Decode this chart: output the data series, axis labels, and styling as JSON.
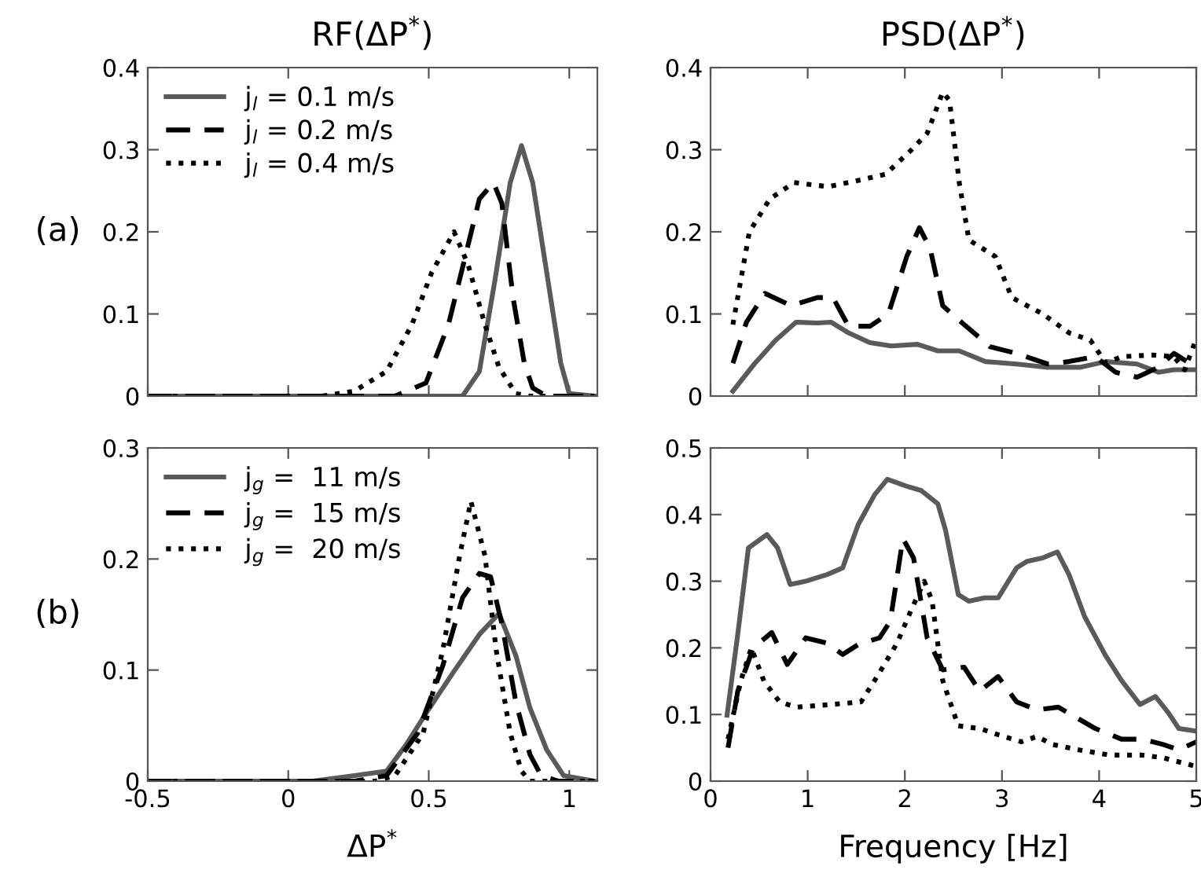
{
  "chart_data": [
    {
      "type": "line",
      "title": "RF(ΔP$^{*}$)",
      "annotations": [
        "(a)"
      ],
      "xlim": [
        -0.5,
        1.1
      ],
      "xticks": [
        -0.5,
        0,
        0.5,
        1
      ],
      "ylim": [
        0,
        0.4
      ],
      "yticks": [
        0,
        0.1,
        0.2,
        0.3,
        0.4
      ],
      "tick_labels": "y",
      "legend": "top left",
      "grid": false,
      "marker": "none",
      "series": [
        {
          "name": "j$_{l}$ = 0.1 m/s",
          "color": "#5a5a5a",
          "line_style": "solid",
          "x": [
            -0.5,
            0.62,
            0.68,
            0.735,
            0.79,
            0.83,
            0.87,
            0.92,
            0.97,
            1.0,
            1.09
          ],
          "values": [
            0,
            0,
            0.03,
            0.14,
            0.26,
            0.305,
            0.26,
            0.15,
            0.04,
            0.003,
            0
          ]
        },
        {
          "name": "j$_{l}$ = 0.2 m/s",
          "color": "#000000",
          "line_style": "dashed",
          "x": [
            -0.5,
            0.38,
            0.49,
            0.57,
            0.63,
            0.68,
            0.73,
            0.76,
            0.8,
            0.84,
            0.87,
            0.92,
            1.09
          ],
          "values": [
            0,
            0,
            0.016,
            0.087,
            0.17,
            0.24,
            0.26,
            0.235,
            0.12,
            0.04,
            0.01,
            0,
            0
          ]
        },
        {
          "name": "j$_{l}$ = 0.4 m/s",
          "color": "#000000",
          "line_style": "dotted",
          "x": [
            -0.5,
            0.12,
            0.235,
            0.35,
            0.44,
            0.51,
            0.59,
            0.64,
            0.7,
            0.75,
            0.81,
            0.86,
            1.09
          ],
          "values": [
            0,
            0,
            0.006,
            0.03,
            0.087,
            0.15,
            0.2,
            0.16,
            0.087,
            0.035,
            0.003,
            0,
            0
          ]
        }
      ]
    },
    {
      "type": "line",
      "title": "PSD(ΔP$^{*}$)",
      "xlim": [
        0,
        5
      ],
      "xticks": [
        0,
        1,
        2,
        3,
        4,
        5
      ],
      "ylim": [
        0,
        0.4
      ],
      "yticks": [
        0,
        0.1,
        0.2,
        0.3,
        0.4
      ],
      "tick_labels": "y",
      "grid": false,
      "marker": "none",
      "series": [
        {
          "color": "#5a5a5a",
          "line_style": "solid",
          "x": [
            0.23,
            0.45,
            0.67,
            0.88,
            1.1,
            1.24,
            1.42,
            1.64,
            1.86,
            2.13,
            2.34,
            2.56,
            2.83,
            3.15,
            3.47,
            3.8,
            4.07,
            4.39,
            4.61,
            4.77,
            5.0
          ],
          "values": [
            0.006,
            0.039,
            0.068,
            0.09,
            0.089,
            0.09,
            0.077,
            0.065,
            0.061,
            0.063,
            0.055,
            0.055,
            0.042,
            0.039,
            0.035,
            0.035,
            0.042,
            0.039,
            0.029,
            0.032,
            0.032
          ]
        },
        {
          "color": "#000000",
          "line_style": "dashed",
          "x": [
            0.23,
            0.37,
            0.56,
            0.83,
            1.1,
            1.26,
            1.42,
            1.64,
            1.83,
            2.02,
            2.15,
            2.26,
            2.39,
            2.61,
            2.88,
            3.15,
            3.47,
            3.69,
            3.96,
            4.17,
            4.39,
            4.61,
            4.77,
            5.0
          ],
          "values": [
            0.04,
            0.09,
            0.125,
            0.11,
            0.12,
            0.12,
            0.085,
            0.085,
            0.1,
            0.17,
            0.205,
            0.18,
            0.11,
            0.087,
            0.06,
            0.052,
            0.039,
            0.042,
            0.048,
            0.029,
            0.023,
            0.035,
            0.052,
            0.035
          ]
        },
        {
          "color": "#000000",
          "line_style": "dotted",
          "x": [
            0.23,
            0.4,
            0.61,
            0.86,
            1.21,
            1.42,
            1.8,
            2.07,
            2.23,
            2.39,
            2.46,
            2.56,
            2.66,
            2.93,
            3.1,
            3.42,
            3.69,
            3.91,
            4.07,
            4.23,
            4.55,
            4.77,
            4.88,
            5.0
          ],
          "values": [
            0.087,
            0.2,
            0.24,
            0.26,
            0.255,
            0.26,
            0.27,
            0.3,
            0.32,
            0.37,
            0.36,
            0.26,
            0.19,
            0.17,
            0.12,
            0.1,
            0.077,
            0.068,
            0.04,
            0.048,
            0.05,
            0.048,
            0.032,
            0.07
          ]
        }
      ]
    },
    {
      "type": "line",
      "xlabel": "ΔP$^{*}$",
      "annotations": [
        "(b)"
      ],
      "xlim": [
        -0.5,
        1.1
      ],
      "xticks": [
        -0.5,
        0,
        0.5,
        1
      ],
      "ylim": [
        0,
        0.3
      ],
      "yticks": [
        0,
        0.1,
        0.2,
        0.3
      ],
      "legend": "top left",
      "grid": false,
      "marker": "none",
      "series": [
        {
          "name": "j$_{g}$ =  11 m/s",
          "color": "#5a5a5a",
          "line_style": "solid",
          "x": [
            -0.5,
            0.087,
            0.235,
            0.35,
            0.42,
            0.49,
            0.59,
            0.68,
            0.75,
            0.81,
            0.86,
            0.92,
            0.98,
            1.09
          ],
          "values": [
            0,
            0,
            0.005,
            0.009,
            0.033,
            0.061,
            0.099,
            0.132,
            0.151,
            0.113,
            0.066,
            0.028,
            0.005,
            0
          ]
        },
        {
          "name": "j$_{g}$ =  15 m/s",
          "color": "#000000",
          "line_style": "dashed",
          "x": [
            -0.5,
            0.235,
            0.35,
            0.46,
            0.55,
            0.62,
            0.68,
            0.72,
            0.76,
            0.81,
            0.86,
            0.9,
            0.96,
            1.09
          ],
          "values": [
            0,
            0,
            0.005,
            0.043,
            0.104,
            0.165,
            0.187,
            0.184,
            0.142,
            0.071,
            0.024,
            0.005,
            0,
            0
          ]
        },
        {
          "name": "j$_{g}$ =  20 m/s",
          "color": "#000000",
          "line_style": "dotted",
          "x": [
            -0.5,
            0.31,
            0.38,
            0.48,
            0.55,
            0.61,
            0.65,
            0.7,
            0.74,
            0.79,
            0.83,
            0.86,
            1.09
          ],
          "values": [
            0,
            0,
            0.005,
            0.043,
            0.118,
            0.203,
            0.252,
            0.203,
            0.118,
            0.043,
            0.009,
            0,
            0
          ]
        }
      ]
    },
    {
      "type": "line",
      "xlabel": "Frequency [Hz]",
      "xlim": [
        0,
        5
      ],
      "xticks": [
        0,
        1,
        2,
        3,
        4,
        5
      ],
      "ylim": [
        0,
        0.5
      ],
      "yticks": [
        0,
        0.1,
        0.2,
        0.3,
        0.4,
        0.5
      ],
      "grid": false,
      "marker": "none",
      "series": [
        {
          "color": "#5a5a5a",
          "line_style": "solid",
          "x": [
            0.17,
            0.28,
            0.39,
            0.58,
            0.69,
            0.82,
            0.98,
            1.2,
            1.36,
            1.52,
            1.69,
            1.82,
            2.01,
            2.17,
            2.34,
            2.42,
            2.55,
            2.66,
            2.82,
            2.96,
            3.15,
            3.26,
            3.42,
            3.57,
            3.69,
            3.85,
            4.06,
            4.23,
            4.42,
            4.58,
            4.71,
            4.82,
            5.0
          ],
          "values": [
            0.099,
            0.22,
            0.35,
            0.37,
            0.35,
            0.295,
            0.3,
            0.31,
            0.32,
            0.385,
            0.43,
            0.453,
            0.443,
            0.436,
            0.416,
            0.376,
            0.28,
            0.27,
            0.275,
            0.275,
            0.32,
            0.33,
            0.335,
            0.344,
            0.31,
            0.247,
            0.19,
            0.151,
            0.115,
            0.127,
            0.103,
            0.079,
            0.075
          ]
        },
        {
          "color": "#000000",
          "line_style": "dashed",
          "x": [
            0.18,
            0.28,
            0.44,
            0.63,
            0.79,
            0.98,
            1.2,
            1.36,
            1.52,
            1.74,
            1.85,
            1.98,
            2.09,
            2.23,
            2.39,
            2.61,
            2.77,
            2.96,
            3.15,
            3.36,
            3.58,
            3.96,
            4.23,
            4.44,
            4.66,
            4.82,
            5.0
          ],
          "values": [
            0.05,
            0.135,
            0.2,
            0.223,
            0.175,
            0.215,
            0.207,
            0.19,
            0.205,
            0.215,
            0.24,
            0.364,
            0.335,
            0.215,
            0.167,
            0.171,
            0.135,
            0.157,
            0.119,
            0.107,
            0.111,
            0.079,
            0.063,
            0.063,
            0.055,
            0.047,
            0.059
          ]
        },
        {
          "color": "#000000",
          "line_style": "dotted",
          "x": [
            0.18,
            0.31,
            0.42,
            0.55,
            0.71,
            0.88,
            1.25,
            1.55,
            1.74,
            1.92,
            2.06,
            2.2,
            2.28,
            2.39,
            2.55,
            2.77,
            2.93,
            3.2,
            3.36,
            3.52,
            3.79,
            4.11,
            4.44,
            4.66,
            5.0
          ],
          "values": [
            0.063,
            0.15,
            0.2,
            0.15,
            0.119,
            0.111,
            0.115,
            0.119,
            0.163,
            0.207,
            0.255,
            0.3,
            0.271,
            0.151,
            0.083,
            0.079,
            0.071,
            0.059,
            0.067,
            0.055,
            0.047,
            0.039,
            0.039,
            0.035,
            0.022
          ]
        }
      ]
    }
  ]
}
